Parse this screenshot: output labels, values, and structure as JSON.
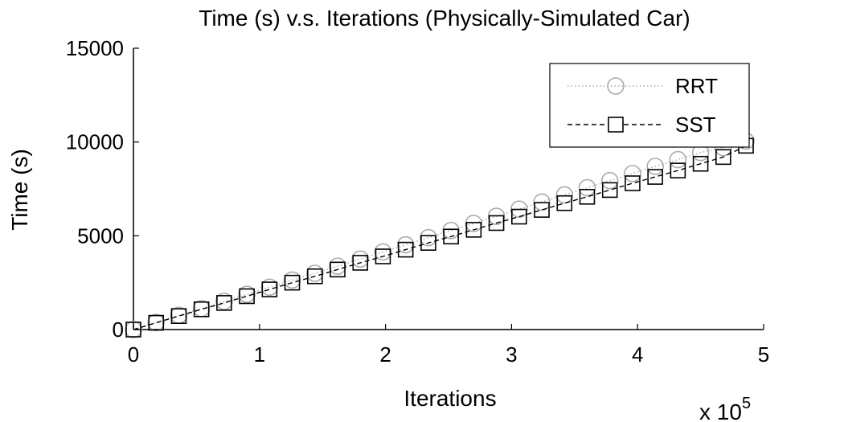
{
  "chart_data": {
    "type": "line",
    "title": "Time (s) v.s. Iterations (Physically-Simulated Car)",
    "xlabel": "Iterations",
    "ylabel": "Time (s)",
    "x_multiplier_text": "x 10",
    "x_multiplier_exp": "5",
    "xlim": [
      0,
      5
    ],
    "ylim": [
      0,
      15000
    ],
    "x_ticks": [
      0,
      1,
      2,
      3,
      4,
      5
    ],
    "x_tick_labels": [
      "0",
      "1",
      "2",
      "3",
      "4",
      "5"
    ],
    "y_ticks": [
      0,
      5000,
      10000,
      15000
    ],
    "y_tick_labels": [
      "0",
      "5000",
      "10000",
      "15000"
    ],
    "grid": false,
    "legend_position": "top-right",
    "x": [
      0.0,
      0.18,
      0.36,
      0.54,
      0.72,
      0.9,
      1.08,
      1.26,
      1.44,
      1.62,
      1.8,
      1.98,
      2.16,
      2.34,
      2.52,
      2.7,
      2.88,
      3.06,
      3.24,
      3.42,
      3.6,
      3.78,
      3.96,
      4.14,
      4.32,
      4.5,
      4.68,
      4.86
    ],
    "series": [
      {
        "name": "RRT",
        "color": "#aaaaaa",
        "marker": "circle",
        "line_style": "dotted",
        "values": [
          0,
          380,
          760,
          1120,
          1500,
          1880,
          2260,
          2640,
          3000,
          3380,
          3760,
          4140,
          4520,
          4900,
          5280,
          5660,
          6040,
          6420,
          6800,
          7180,
          7560,
          7940,
          8320,
          8700,
          9060,
          9440,
          9700,
          10050
        ]
      },
      {
        "name": "SST",
        "color": "#000000",
        "marker": "square",
        "line_style": "dashed",
        "values": [
          0,
          360,
          720,
          1080,
          1420,
          1780,
          2140,
          2500,
          2840,
          3200,
          3560,
          3900,
          4260,
          4620,
          4960,
          5320,
          5680,
          6020,
          6380,
          6740,
          7080,
          7440,
          7800,
          8140,
          8480,
          8840,
          9200,
          9800
        ]
      }
    ]
  }
}
